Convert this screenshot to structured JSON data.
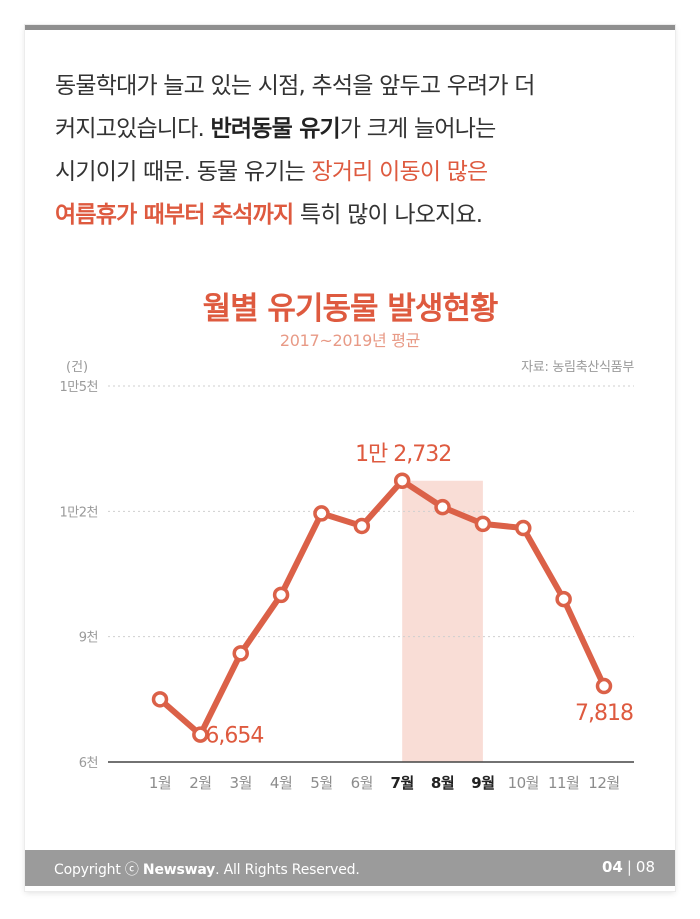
{
  "intro": {
    "line1": "동물학대가 늘고 있는 시점, 추석을 앞두고 우려가 더",
    "line2_a": "커지고있습니다. ",
    "line2_b": "반려동물 유기",
    "line2_c": "가 크게 늘어나는",
    "line3_a": "시기이기 때문. 동물 유기는 ",
    "line3_b": "장거리 이동이 많은",
    "line4_a": "여름휴가 때부터 추석까지",
    "line4_b": " 특히 많이 나오지요."
  },
  "chart_data": {
    "type": "line",
    "title": "월별 유기동물 발생현황",
    "subtitle": "2017~2019년 평균",
    "unit": "(건)",
    "source": "자료: 농림축산식품부",
    "categories": [
      "1월",
      "2월",
      "3월",
      "4월",
      "5월",
      "6월",
      "7월",
      "8월",
      "9월",
      "10월",
      "11월",
      "12월"
    ],
    "highlight_categories": [
      "7월",
      "8월",
      "9월"
    ],
    "values": [
      7500,
      6654,
      8600,
      10000,
      11950,
      11650,
      12732,
      12100,
      11700,
      11600,
      9900,
      7818
    ],
    "data_labels": [
      {
        "index": 1,
        "text": "6,654"
      },
      {
        "index": 6,
        "text": "1만 2,732"
      },
      {
        "index": 11,
        "text": "7,818"
      }
    ],
    "yticks": [
      {
        "value": 6000,
        "label": "6천"
      },
      {
        "value": 9000,
        "label": "9천"
      },
      {
        "value": 12000,
        "label": "1만2천"
      },
      {
        "value": 15000,
        "label": "1만5천"
      }
    ],
    "ylim": [
      6000,
      15000
    ],
    "grid": true,
    "colors": {
      "line": "#db6148",
      "highlight": "#f9ddd6",
      "label": "#de5a3f",
      "grid": "#cfcfcf",
      "axis": "#444444"
    }
  },
  "footer": {
    "copyright_prefix": "Copyright ⓒ ",
    "brand": "Newsway",
    "copyright_suffix": ". All Rights Reserved.",
    "page_current": "04",
    "page_separator": "|",
    "page_total": "08"
  }
}
